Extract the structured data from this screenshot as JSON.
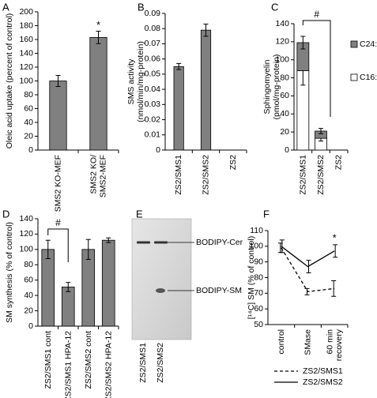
{
  "chart_data": [
    {
      "type": "bar",
      "panel": "A",
      "ylabel": "Oleic acid uptake (percent of control)",
      "categories": [
        "SMS2 KO-MEF",
        "SMS2 KO/\nSMS2-MEF"
      ],
      "values": [
        100,
        163
      ],
      "errors": [
        8,
        9
      ],
      "color": "#808080",
      "ylim": [
        0,
        200
      ],
      "yticks": [
        0,
        20,
        40,
        60,
        80,
        100,
        120,
        140,
        160,
        180,
        200
      ],
      "annotation": "*"
    },
    {
      "type": "bar",
      "panel": "B",
      "ylabel": "SMS activity\n(nmol/min/mg-protein)",
      "categories": [
        "ZS2/SMS1",
        "ZS2/SMS2",
        "ZS2"
      ],
      "values": [
        0.055,
        0.079,
        0
      ],
      "errors": [
        0.002,
        0.004,
        null
      ],
      "color": "#808080",
      "ylim": [
        0,
        0.09
      ],
      "yticks": [
        0,
        0.01,
        0.02,
        0.03,
        0.04,
        0.05,
        0.06,
        0.07,
        0.08,
        0.09
      ]
    },
    {
      "type": "stacked_bar",
      "panel": "C",
      "ylabel": "Sphingomyelin\n(pmol/mg-protein)",
      "categories": [
        "ZS2/SMS1",
        "ZS2/SMS2",
        "ZS2"
      ],
      "series": [
        {
          "name": "C16:0",
          "color": "#ffffff",
          "values": [
            88,
            13,
            0
          ],
          "errors": [
            16,
            3,
            null
          ]
        },
        {
          "name": "C24:1",
          "color": "#808080",
          "values": [
            31,
            8,
            0
          ],
          "errors": [
            7,
            3,
            null
          ]
        }
      ],
      "ylim": [
        0,
        140
      ],
      "yticks": [
        0,
        20,
        40,
        60,
        80,
        100,
        120,
        140
      ],
      "annotation": "#"
    },
    {
      "type": "bar",
      "panel": "D",
      "ylabel": "SM synthesis  (% of control)",
      "categories": [
        "ZS2/SMS1 cont",
        "ZS2/SMS1 HPA-12",
        "ZS2/SMS2 cont",
        "ZS2/SMS2 HPA-12"
      ],
      "values": [
        100,
        51,
        100,
        112
      ],
      "errors": [
        12,
        6,
        13,
        3
      ],
      "color": "#808080",
      "ylim": [
        0,
        140
      ],
      "yticks": [
        0,
        20,
        40,
        60,
        80,
        100,
        120,
        140
      ],
      "annotation": "#"
    },
    {
      "type": "gel",
      "panel": "E",
      "bands": [
        "BODIPY-Cer",
        "BODIPY-SM"
      ],
      "lanes": [
        "ZS2/SMS1",
        "ZS2/SMS2"
      ]
    },
    {
      "type": "line",
      "panel": "F",
      "ylabel": "[¹⁴C] SM (% of control)",
      "categories": [
        "control",
        "SMase",
        "60 min\nrecovery"
      ],
      "series": [
        {
          "name": "ZS2/SMS1",
          "color": "#000000",
          "line_style": "dashed",
          "values": [
            99,
            71,
            73
          ],
          "errors": [
            3,
            2,
            5
          ]
        },
        {
          "name": "ZS2/SMS2",
          "color": "#000000",
          "line_style": "solid",
          "values": [
            100,
            87,
            97
          ],
          "errors": [
            4,
            4,
            4
          ]
        }
      ],
      "ylim": [
        50,
        110
      ],
      "yticks": [
        50,
        60,
        70,
        80,
        90,
        100,
        110
      ],
      "annotation": "*"
    }
  ]
}
